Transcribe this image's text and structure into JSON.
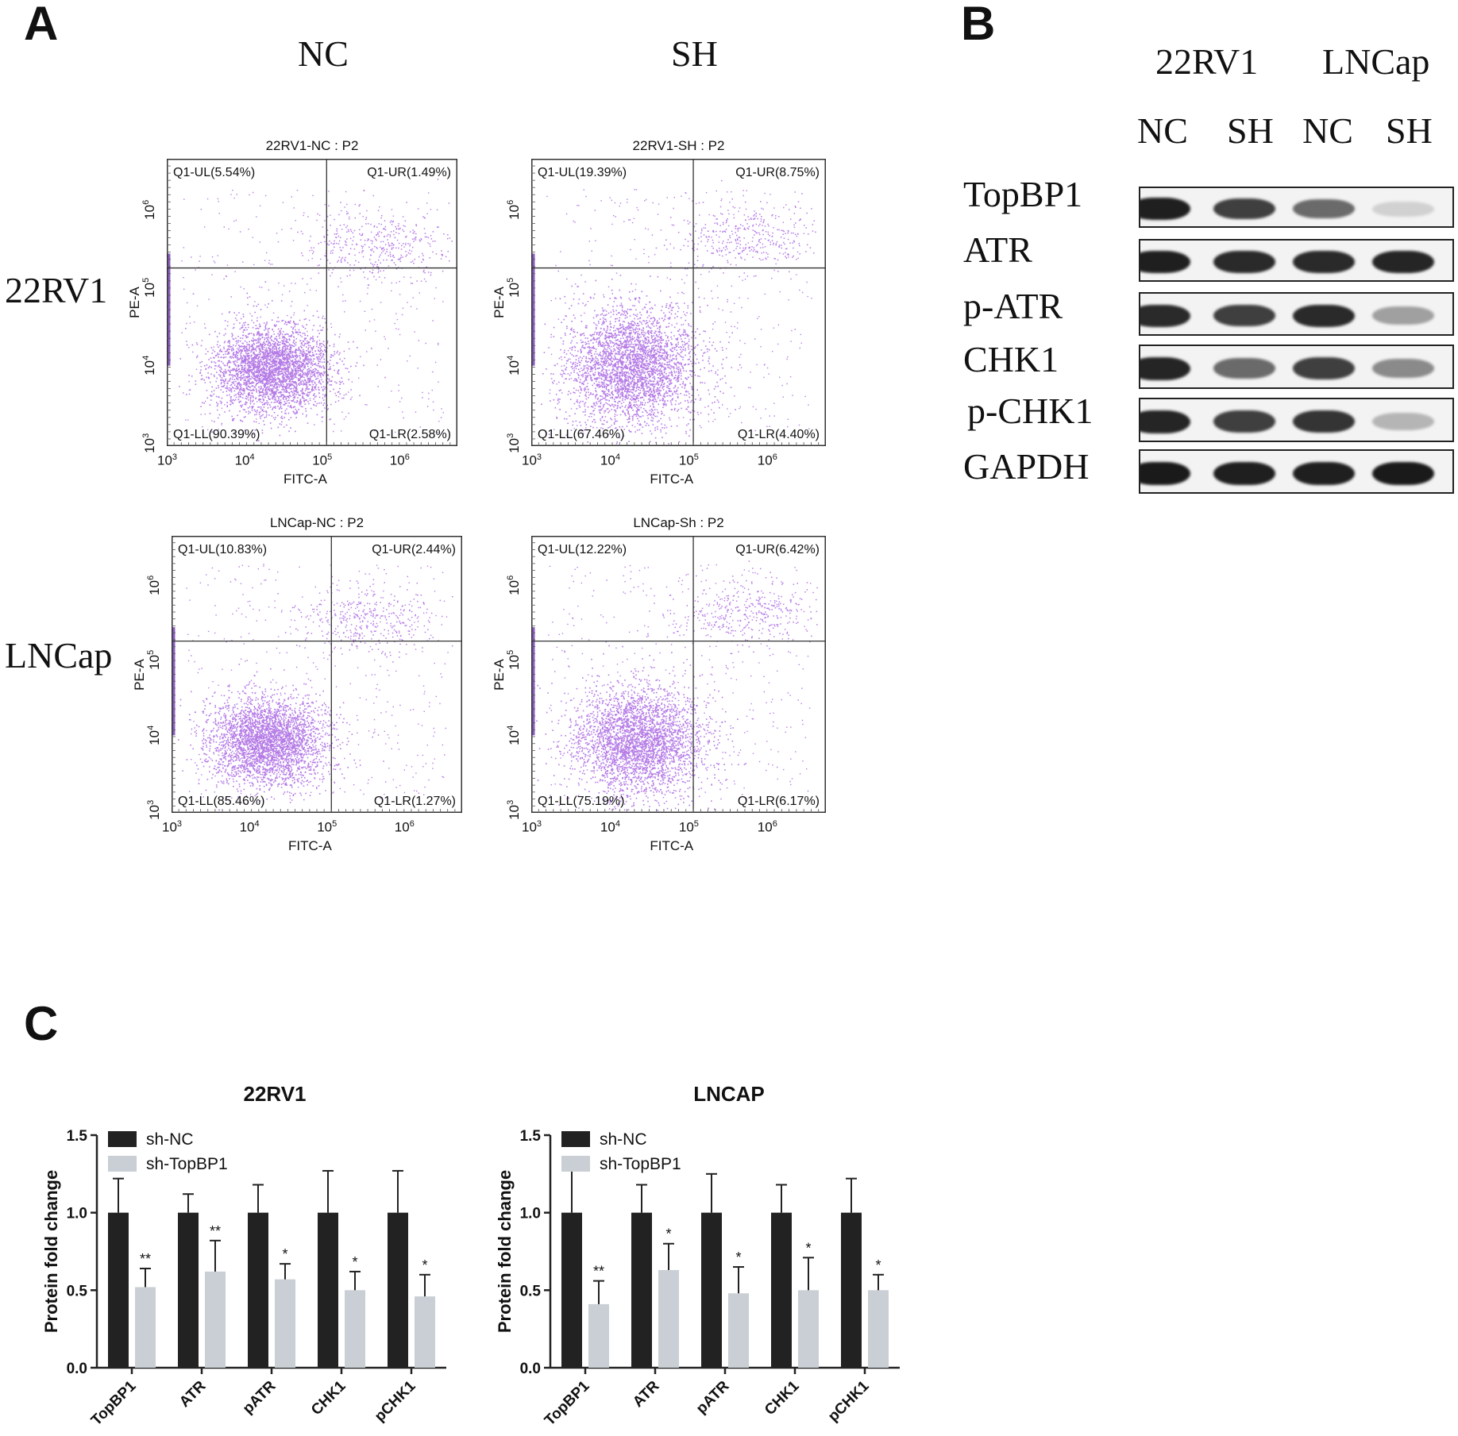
{
  "panels": {
    "a": "A",
    "b": "B",
    "c": "C"
  },
  "panel_a": {
    "column_headers": [
      "NC",
      "SH"
    ],
    "row_labels": [
      "22RV1",
      "LNCap"
    ],
    "plots": [
      {
        "title": "22RV1-NC : P2",
        "q_ul": "Q1-UL(5.54%)",
        "q_ur": "Q1-UR(1.49%)",
        "q_ll": "Q1-LL(90.39%)",
        "q_lr": "Q1-LR(2.58%)",
        "xlabel": "FITC-A",
        "ylabel": "PE-A"
      },
      {
        "title": "22RV1-SH : P2",
        "q_ul": "Q1-UL(19.39%)",
        "q_ur": "Q1-UR(8.75%)",
        "q_ll": "Q1-LL(67.46%)",
        "q_lr": "Q1-LR(4.40%)",
        "xlabel": "FITC-A",
        "ylabel": "PE-A"
      },
      {
        "title": "LNCap-NC : P2",
        "q_ul": "Q1-UL(10.83%)",
        "q_ur": "Q1-UR(2.44%)",
        "q_ll": "Q1-LL(85.46%)",
        "q_lr": "Q1-LR(1.27%)",
        "xlabel": "FITC-A",
        "ylabel": "PE-A"
      },
      {
        "title": "LNCap-Sh : P2",
        "q_ul": "Q1-UL(12.22%)",
        "q_ur": "Q1-UR(6.42%)",
        "q_ll": "Q1-LL(75.19%)",
        "q_lr": "Q1-LR(6.17%)",
        "xlabel": "FITC-A",
        "ylabel": "PE-A"
      }
    ],
    "tick_exponents": [
      "3",
      "4",
      "5",
      "6"
    ],
    "tick_base": "10",
    "dot_color": "#b57be6"
  },
  "panel_b": {
    "cell_lines": [
      "22RV1",
      "LNCap"
    ],
    "lanes": [
      "NC",
      "SH",
      "NC",
      "SH"
    ],
    "proteins": [
      "TopBP1",
      "ATR",
      "p-ATR",
      "CHK1",
      "p-CHK1",
      "GAPDH"
    ]
  },
  "chart_data": [
    {
      "type": "bar",
      "title": "22RV1",
      "ylabel": "Protein fold change",
      "xlabel": "",
      "categories": [
        "TopBP1",
        "ATR",
        "pATR",
        "CHK1",
        "pCHK1"
      ],
      "ylim": [
        0,
        1.5
      ],
      "yticks": [
        "0.0",
        "0.5",
        "1.0",
        "1.5"
      ],
      "legend_position": "top-left",
      "series": [
        {
          "name": "sh-NC",
          "color": "#222222",
          "values": [
            1.0,
            1.0,
            1.0,
            1.0,
            1.0
          ],
          "errors": [
            0.22,
            0.12,
            0.18,
            0.27,
            0.27
          ]
        },
        {
          "name": "sh-TopBP1",
          "color": "#c9cfd4",
          "values": [
            0.52,
            0.62,
            0.57,
            0.5,
            0.46
          ],
          "errors": [
            0.12,
            0.2,
            0.1,
            0.12,
            0.14
          ]
        }
      ],
      "significance": [
        "**",
        "**",
        "*",
        "*",
        "*"
      ]
    },
    {
      "type": "bar",
      "title": "LNCAP",
      "ylabel": "Protein fold change",
      "xlabel": "",
      "categories": [
        "TopBP1",
        "ATR",
        "pATR",
        "CHK1",
        "pCHK1"
      ],
      "ylim": [
        0,
        1.5
      ],
      "yticks": [
        "0.0",
        "0.5",
        "1.0",
        "1.5"
      ],
      "legend_position": "top-left",
      "series": [
        {
          "name": "sh-NC",
          "color": "#222222",
          "values": [
            1.0,
            1.0,
            1.0,
            1.0,
            1.0
          ],
          "errors": [
            0.27,
            0.18,
            0.25,
            0.18,
            0.22
          ]
        },
        {
          "name": "sh-TopBP1",
          "color": "#c9cfd4",
          "values": [
            0.41,
            0.63,
            0.48,
            0.5,
            0.5
          ],
          "errors": [
            0.15,
            0.17,
            0.17,
            0.21,
            0.1
          ]
        }
      ],
      "significance": [
        "**",
        "*",
        "*",
        "*",
        "*"
      ]
    }
  ]
}
